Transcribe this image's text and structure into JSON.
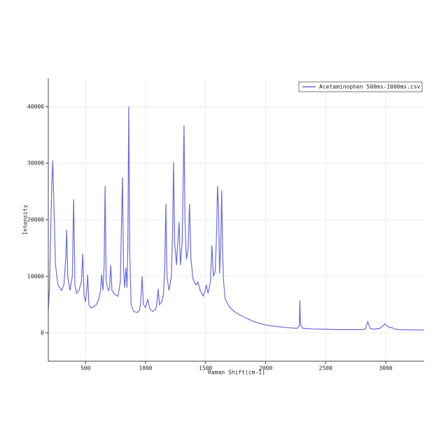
{
  "chart_data": {
    "type": "line",
    "x_label": "Raman Shift(cm-1)",
    "y_label": "Intensity",
    "x": [
      190,
      200,
      210,
      220,
      227,
      235,
      250,
      270,
      300,
      320,
      335,
      343,
      352,
      370,
      390,
      401,
      412,
      425,
      445,
      465,
      477,
      488,
      500,
      510,
      518,
      528,
      545,
      560,
      590,
      610,
      625,
      634,
      645,
      655,
      663,
      672,
      690,
      700,
      710,
      720,
      745,
      770,
      790,
      800,
      808,
      816,
      825,
      837,
      845,
      852,
      860,
      868,
      880,
      900,
      930,
      950,
      960,
      971,
      982,
      1000,
      1018,
      1035,
      1060,
      1085,
      1095,
      1105,
      1115,
      1135,
      1150,
      1160,
      1169,
      1178,
      1195,
      1215,
      1225,
      1233,
      1242,
      1250,
      1258,
      1265,
      1279,
      1290,
      1305,
      1314,
      1320,
      1328,
      1340,
      1355,
      1366,
      1378,
      1395,
      1420,
      1436,
      1455,
      1480,
      1495,
      1506,
      1520,
      1540,
      1552,
      1565,
      1580,
      1592,
      1599,
      1608,
      1616,
      1625,
      1634,
      1642,
      1650,
      1663,
      1700,
      1750,
      1800,
      1900,
      2000,
      2100,
      2200,
      2260,
      2280,
      2285,
      2290,
      2310,
      2400,
      2500,
      2600,
      2700,
      2800,
      2830,
      2850,
      2870,
      2900,
      2950,
      2980,
      2990,
      3000,
      3020,
      3040,
      3050,
      3070,
      3100,
      3200,
      3320
    ],
    "series": [
      {
        "name": "Acetaminophen 500ms-1000ms.csv",
        "color": "#6a6ae0",
        "values": [
          4000,
          8000,
          18000,
          27000,
          30500,
          24000,
          12000,
          8500,
          7500,
          8500,
          13000,
          18200,
          10000,
          7500,
          10000,
          23600,
          8500,
          7000,
          7500,
          9000,
          14000,
          6500,
          5500,
          7500,
          10300,
          5000,
          4400,
          4500,
          5000,
          6000,
          7500,
          10300,
          7500,
          12000,
          26000,
          9000,
          7500,
          8000,
          12000,
          7500,
          6800,
          6500,
          9000,
          20000,
          27500,
          12000,
          8000,
          11500,
          8000,
          15000,
          40000,
          14000,
          5000,
          3800,
          3600,
          4000,
          5500,
          10000,
          5000,
          4500,
          6000,
          4300,
          3800,
          4200,
          5500,
          7800,
          5000,
          5500,
          7000,
          12000,
          22800,
          10000,
          7500,
          10000,
          18000,
          30200,
          16000,
          14000,
          12000,
          15000,
          19600,
          12000,
          16000,
          28000,
          36700,
          20000,
          13000,
          15000,
          22800,
          13000,
          9500,
          8500,
          9000,
          7500,
          6500,
          7500,
          8500,
          7000,
          9000,
          15500,
          10000,
          11000,
          18000,
          26000,
          22000,
          10500,
          15000,
          25200,
          14000,
          9000,
          6000,
          4500,
          3600,
          3000,
          2000,
          1400,
          1100,
          900,
          800,
          1200,
          5700,
          1500,
          800,
          700,
          650,
          600,
          600,
          600,
          700,
          2000,
          800,
          650,
          800,
          1300,
          1600,
          1500,
          1100,
          900,
          1000,
          700,
          600,
          550,
          500
        ]
      }
    ],
    "xlim": [
      190,
      3320
    ],
    "ylim": [
      -5000,
      45000
    ],
    "xticks": [
      500,
      1000,
      1500,
      2000,
      2500,
      3000
    ],
    "yticks": [
      0,
      10000,
      20000,
      30000,
      40000
    ],
    "grid": true,
    "legend": "upper right"
  }
}
